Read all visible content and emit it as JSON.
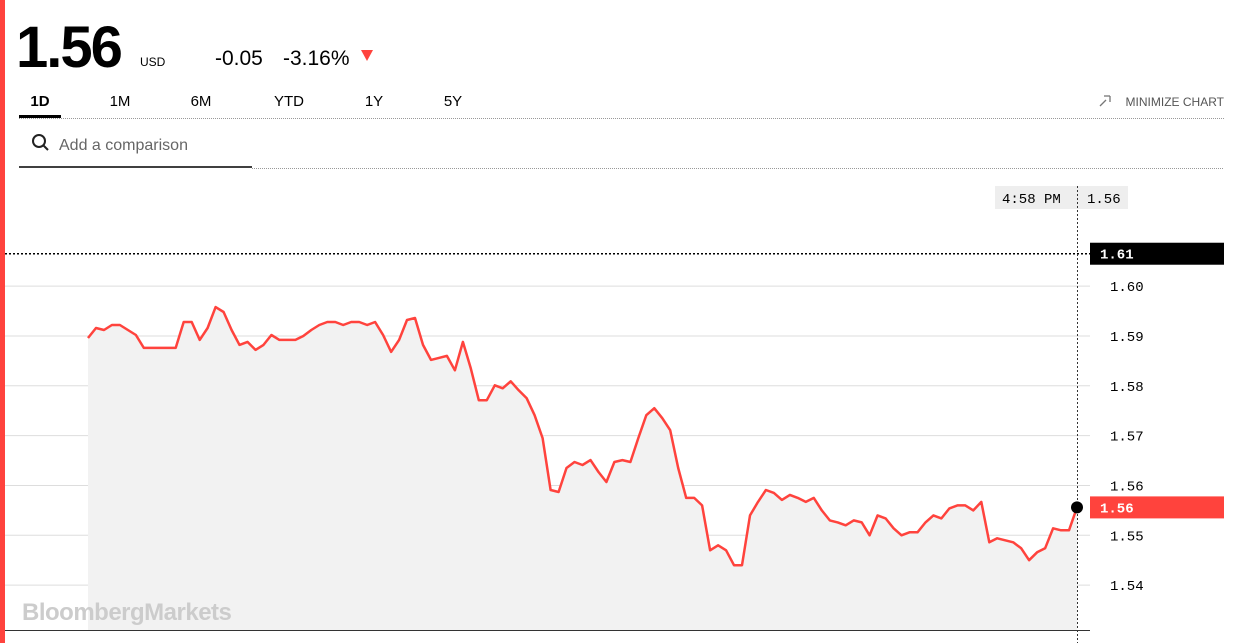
{
  "header": {
    "price": "1.56",
    "currency": "USD",
    "change": "-0.05",
    "change_pct": "-3.16%"
  },
  "tabs": [
    "1D",
    "1M",
    "6M",
    "YTD",
    "1Y",
    "5Y"
  ],
  "minimize": "MINIMIZE CHART",
  "search_placeholder": "Add a comparison",
  "watermark": "BloombergMarkets",
  "chart_data": {
    "type": "line",
    "series": [
      {
        "color": "#ff433d",
        "values": [
          1.5896,
          1.5916,
          1.5912,
          1.5922,
          1.5922,
          1.5912,
          1.5902,
          1.5876,
          1.5876,
          1.5876,
          1.5876,
          1.5876,
          1.5928,
          1.5928,
          1.5892,
          1.5916,
          1.5958,
          1.5948,
          1.5912,
          1.5882,
          1.5888,
          1.5872,
          1.5882,
          1.5902,
          1.5892,
          1.5892,
          1.5892,
          1.59,
          1.5912,
          1.5922,
          1.5928,
          1.5928,
          1.5922,
          1.5928,
          1.5928,
          1.5922,
          1.5928,
          1.5902,
          1.5868,
          1.5892,
          1.5932,
          1.5936,
          1.5882,
          1.5852,
          1.5856,
          1.586,
          1.5831,
          1.5888,
          1.5835,
          1.5771,
          1.5771,
          1.5801,
          1.5795,
          1.5809,
          1.5791,
          1.5775,
          1.5741,
          1.5695,
          1.5591,
          1.5587,
          1.5635,
          1.5647,
          1.5641,
          1.5651,
          1.5627,
          1.5607,
          1.5647,
          1.5651,
          1.5647,
          1.5695,
          1.5741,
          1.5755,
          1.5735,
          1.5711,
          1.5635,
          1.5575,
          1.5575,
          1.556,
          1.547,
          1.548,
          1.547,
          1.544,
          1.544,
          1.554,
          1.5567,
          1.5591,
          1.5585,
          1.5571,
          1.5581,
          1.5575,
          1.5567,
          1.5575,
          1.555,
          1.553,
          1.5526,
          1.552,
          1.553,
          1.5526,
          1.55,
          1.554,
          1.5534,
          1.5514,
          1.55,
          1.5506,
          1.5506,
          1.5526,
          1.554,
          1.5534,
          1.5554,
          1.556,
          1.556,
          1.555,
          1.5567,
          1.5486,
          1.5494,
          1.549,
          1.5486,
          1.5474,
          1.545,
          1.5466,
          1.5474,
          1.5514,
          1.551,
          1.551,
          1.5556
        ]
      }
    ],
    "ylim": [
      1.531,
      1.6233
    ],
    "yticks": [
      1.54,
      1.55,
      1.56,
      1.57,
      1.58,
      1.59,
      {
        "value": 1.6,
        "label": "1.60"
      }
    ],
    "grid": true,
    "previous_close": {
      "value": 1.6065,
      "label": "1.61"
    },
    "last": {
      "value": 1.5556,
      "label": "1.56"
    },
    "hover": {
      "time": "4:58 PM",
      "label": "1.56"
    }
  }
}
